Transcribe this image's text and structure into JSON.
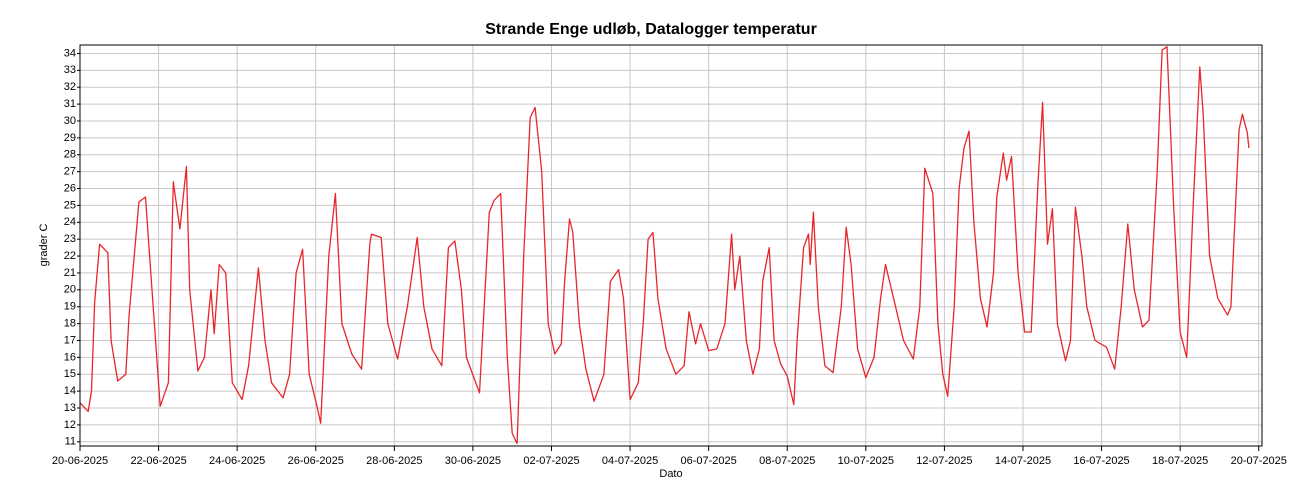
{
  "chart_data": {
    "type": "line",
    "title": "Strande Enge udløb, Datalogger temperatur",
    "xlabel": "Dato",
    "ylabel": "grader C",
    "grid": true,
    "xlim": [
      "2025-06-20T00:00",
      "2025-07-20T02:00"
    ],
    "ylim": [
      10.75,
      34.5
    ],
    "yticks": [
      11,
      12,
      13,
      14,
      15,
      16,
      17,
      18,
      19,
      20,
      21,
      22,
      23,
      24,
      25,
      26,
      27,
      28,
      29,
      30,
      31,
      32,
      33,
      34
    ],
    "xticks": [
      {
        "value": "2025-06-20T00:00",
        "label": "20-06-2025"
      },
      {
        "value": "2025-06-22T00:00",
        "label": "22-06-2025"
      },
      {
        "value": "2025-06-24T00:00",
        "label": "24-06-2025"
      },
      {
        "value": "2025-06-26T00:00",
        "label": "26-06-2025"
      },
      {
        "value": "2025-06-28T00:00",
        "label": "28-06-2025"
      },
      {
        "value": "2025-06-30T00:00",
        "label": "30-06-2025"
      },
      {
        "value": "2025-07-02T00:00",
        "label": "02-07-2025"
      },
      {
        "value": "2025-07-04T00:00",
        "label": "04-07-2025"
      },
      {
        "value": "2025-07-06T00:00",
        "label": "06-07-2025"
      },
      {
        "value": "2025-07-08T00:00",
        "label": "08-07-2025"
      },
      {
        "value": "2025-07-10T00:00",
        "label": "10-07-2025"
      },
      {
        "value": "2025-07-12T00:00",
        "label": "12-07-2025"
      },
      {
        "value": "2025-07-14T00:00",
        "label": "14-07-2025"
      },
      {
        "value": "2025-07-16T00:00",
        "label": "16-07-2025"
      },
      {
        "value": "2025-07-18T00:00",
        "label": "18-07-2025"
      },
      {
        "value": "2025-07-20T00:00",
        "label": "20-07-2025"
      }
    ],
    "x": [
      "2025-06-20T00:00",
      "2025-06-20T05:00",
      "2025-06-20T07:00",
      "2025-06-20T09:00",
      "2025-06-20T12:00",
      "2025-06-20T17:00",
      "2025-06-20T19:00",
      "2025-06-20T23:00",
      "2025-06-21T04:00",
      "2025-06-21T06:00",
      "2025-06-21T12:00",
      "2025-06-21T16:00",
      "2025-06-21T20:00",
      "2025-06-22T01:00",
      "2025-06-22T06:00",
      "2025-06-22T09:00",
      "2025-06-22T13:00",
      "2025-06-22T17:00",
      "2025-06-22T19:00",
      "2025-06-23T00:00",
      "2025-06-23T04:00",
      "2025-06-23T08:00",
      "2025-06-23T10:00",
      "2025-06-23T13:00",
      "2025-06-23T17:00",
      "2025-06-23T21:00",
      "2025-06-24T03:00",
      "2025-06-24T07:00",
      "2025-06-24T13:00",
      "2025-06-24T17:00",
      "2025-06-24T21:00",
      "2025-06-25T04:00",
      "2025-06-25T08:00",
      "2025-06-25T12:00",
      "2025-06-25T16:00",
      "2025-06-25T20:00",
      "2025-06-26T01:00",
      "2025-06-26T03:00",
      "2025-06-26T08:00",
      "2025-06-26T12:00",
      "2025-06-26T16:00",
      "2025-06-26T22:00",
      "2025-06-27T04:00",
      "2025-06-27T09:00",
      "2025-06-27T10:00",
      "2025-06-27T16:00",
      "2025-06-27T20:00",
      "2025-06-28T02:00",
      "2025-06-28T08:00",
      "2025-06-28T14:00",
      "2025-06-28T18:00",
      "2025-06-28T23:00",
      "2025-06-29T05:00",
      "2025-06-29T09:00",
      "2025-06-29T13:00",
      "2025-06-29T17:00",
      "2025-06-29T20:00",
      "2025-06-30T04:00",
      "2025-06-30T10:00",
      "2025-06-30T13:00",
      "2025-06-30T17:00",
      "2025-06-30T21:00",
      "2025-07-01T00:00",
      "2025-07-01T03:00",
      "2025-07-01T07:00",
      "2025-07-01T11:00",
      "2025-07-01T14:00",
      "2025-07-01T18:00",
      "2025-07-01T22:00",
      "2025-07-02T02:00",
      "2025-07-02T06:00",
      "2025-07-02T08:00",
      "2025-07-02T11:00",
      "2025-07-02T13:00",
      "2025-07-02T17:00",
      "2025-07-02T21:00",
      "2025-07-03T02:00",
      "2025-07-03T08:00",
      "2025-07-03T12:00",
      "2025-07-03T17:00",
      "2025-07-03T20:00",
      "2025-07-04T00:00",
      "2025-07-04T05:00",
      "2025-07-04T08:00",
      "2025-07-04T11:00",
      "2025-07-04T14:00",
      "2025-07-04T17:00",
      "2025-07-04T22:00",
      "2025-07-05T04:00",
      "2025-07-05T09:00",
      "2025-07-05T12:00",
      "2025-07-05T16:00",
      "2025-07-05T19:00",
      "2025-07-06T00:00",
      "2025-07-06T05:00",
      "2025-07-06T10:00",
      "2025-07-06T14:00",
      "2025-07-06T16:00",
      "2025-07-06T19:00",
      "2025-07-06T23:00",
      "2025-07-07T03:00",
      "2025-07-07T07:00",
      "2025-07-07T09:00",
      "2025-07-07T13:00",
      "2025-07-07T16:00",
      "2025-07-07T20:00",
      "2025-07-08T00:00",
      "2025-07-08T04:00",
      "2025-07-08T06:00",
      "2025-07-08T10:00",
      "2025-07-08T13:00",
      "2025-07-08T14:00",
      "2025-07-08T16:00",
      "2025-07-08T19:00",
      "2025-07-08T23:00",
      "2025-07-09T04:00",
      "2025-07-09T09:00",
      "2025-07-09T12:00",
      "2025-07-09T15:00",
      "2025-07-09T19:00",
      "2025-07-10T00:00",
      "2025-07-10T05:00",
      "2025-07-10T09:00",
      "2025-07-10T12:00",
      "2025-07-10T17:00",
      "2025-07-10T23:00",
      "2025-07-11T05:00",
      "2025-07-11T09:00",
      "2025-07-11T12:00",
      "2025-07-11T17:00",
      "2025-07-11T20:00",
      "2025-07-11T23:00",
      "2025-07-12T02:00",
      "2025-07-12T06:00",
      "2025-07-12T09:00",
      "2025-07-12T12:00",
      "2025-07-12T15:00",
      "2025-07-12T18:00",
      "2025-07-12T22:00",
      "2025-07-13T02:00",
      "2025-07-13T06:00",
      "2025-07-13T08:00",
      "2025-07-13T12:00",
      "2025-07-13T14:00",
      "2025-07-13T17:00",
      "2025-07-13T21:00",
      "2025-07-14T01:00",
      "2025-07-14T05:00",
      "2025-07-14T09:00",
      "2025-07-14T12:00",
      "2025-07-14T15:00",
      "2025-07-14T18:00",
      "2025-07-14T21:00",
      "2025-07-15T02:00",
      "2025-07-15T05:00",
      "2025-07-15T08:00",
      "2025-07-15T12:00",
      "2025-07-15T15:00",
      "2025-07-15T20:00",
      "2025-07-16T03:00",
      "2025-07-16T08:00",
      "2025-07-16T12:00",
      "2025-07-16T16:00",
      "2025-07-16T20:00",
      "2025-07-17T01:00",
      "2025-07-17T05:00",
      "2025-07-17T10:00",
      "2025-07-17T13:00",
      "2025-07-17T16:00",
      "2025-07-17T20:00",
      "2025-07-18T00:00",
      "2025-07-18T04:00",
      "2025-07-18T08:00",
      "2025-07-18T12:00",
      "2025-07-18T14:00",
      "2025-07-18T18:00",
      "2025-07-18T23:00",
      "2025-07-19T05:00",
      "2025-07-19T07:00",
      "2025-07-19T12:00",
      "2025-07-19T14:00",
      "2025-07-19T17:00",
      "2025-07-19T18:00"
    ],
    "series": [
      {
        "color": "#e8262a",
        "values": [
          13.3,
          12.8,
          14,
          19.3,
          22.7,
          22.2,
          17,
          14.6,
          15,
          18.5,
          25.2,
          25.5,
          20,
          13.1,
          14.5,
          26.4,
          23.6,
          27.3,
          20,
          15.2,
          16,
          20,
          17.4,
          21.5,
          21,
          14.5,
          13.5,
          15.5,
          21.3,
          17,
          14.5,
          13.6,
          15,
          21,
          22.4,
          15,
          13,
          12.1,
          22,
          25.7,
          18,
          16.2,
          15.3,
          22.7,
          23.3,
          23.1,
          18,
          15.9,
          19,
          23.1,
          19,
          16.5,
          15.5,
          22.5,
          22.9,
          20,
          16,
          13.9,
          24.6,
          25.3,
          25.7,
          16,
          11.5,
          10.9,
          22,
          30.2,
          30.8,
          27,
          18,
          16.2,
          16.8,
          20.5,
          24.2,
          23.4,
          18,
          15.3,
          13.4,
          15,
          20.5,
          21.2,
          19.5,
          13.5,
          14.5,
          18,
          23,
          23.4,
          19.5,
          16.5,
          15,
          15.5,
          18.7,
          16.8,
          18,
          16.4,
          16.5,
          18,
          23.3,
          20,
          22,
          17,
          15,
          16.5,
          20.5,
          22.5,
          17,
          15.6,
          14.9,
          13.2,
          17,
          22.5,
          23.3,
          21.5,
          24.6,
          19,
          15.5,
          15.1,
          19,
          23.7,
          21.5,
          16.5,
          14.8,
          16,
          19.5,
          21.5,
          19.5,
          17,
          15.9,
          19,
          27.2,
          25.7,
          18,
          15,
          13.7,
          19,
          26,
          28.4,
          29.4,
          24,
          19.5,
          17.8,
          21,
          25.5,
          28.1,
          26.5,
          27.9,
          21,
          17.5,
          17.5,
          26,
          31.1,
          22.7,
          24.8,
          18,
          15.8,
          17,
          24.9,
          22,
          19,
          17,
          16.6,
          15.3,
          19,
          23.9,
          20,
          17.8,
          18.2,
          27,
          34.2,
          34.4,
          25,
          17.5,
          16,
          25,
          33.2,
          30.5,
          22,
          19.5,
          18.5,
          19,
          29.5,
          30.4,
          29.3,
          28.4
        ]
      }
    ]
  }
}
